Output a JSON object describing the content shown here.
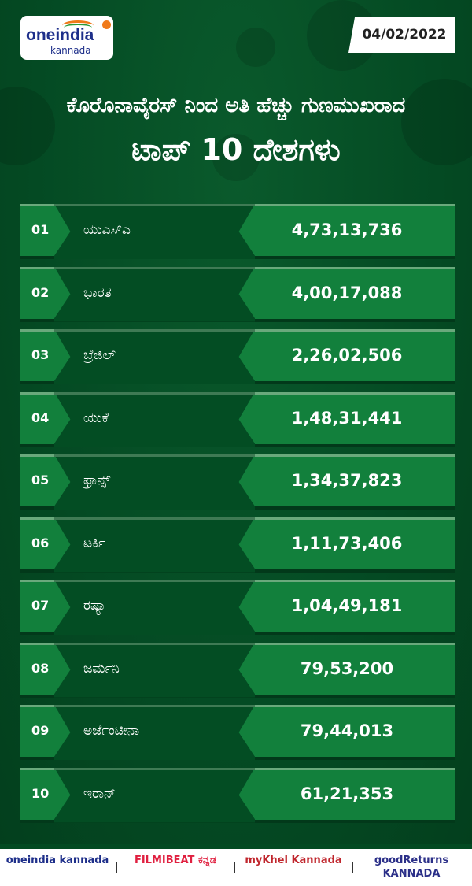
{
  "header": {
    "logo_text": "oneindia",
    "logo_sub": "kannada",
    "date": "04/02/2022"
  },
  "title": {
    "line1": "ಕೊರೊನಾವೈರಸ್ ನಿಂದ ಅತಿ ಹೆಚ್ಚು ಗುಣಮುಖರಾದ",
    "line2": "ಟಾಪ್ 10 ದೇಶಗಳು"
  },
  "colors": {
    "background": "#034a22",
    "row_light": "#12803c",
    "row_dark": "#034d23"
  },
  "rows": [
    {
      "rank": "01",
      "country": "ಯುಎಸ್ಎ",
      "recovered": "4,73,13,736"
    },
    {
      "rank": "02",
      "country": "ಭಾರತ",
      "recovered": "4,00,17,088"
    },
    {
      "rank": "03",
      "country": "ಬ್ರೆಜಿಲ್",
      "recovered": "2,26,02,506"
    },
    {
      "rank": "04",
      "country": "ಯುಕೆ",
      "recovered": "1,48,31,441"
    },
    {
      "rank": "05",
      "country": "ಫ್ರಾನ್ಸ್",
      "recovered": "1,34,37,823"
    },
    {
      "rank": "06",
      "country": "ಟರ್ಕಿ",
      "recovered": "1,11,73,406"
    },
    {
      "rank": "07",
      "country": "ರಷ್ಯಾ",
      "recovered": "1,04,49,181"
    },
    {
      "rank": "08",
      "country": "ಜರ್ಮನಿ",
      "recovered": "79,53,200"
    },
    {
      "rank": "09",
      "country": "ಅರ್ಜೆಂಟೀನಾ",
      "recovered": "79,44,013"
    },
    {
      "rank": "10",
      "country": "ಇರಾನ್",
      "recovered": "61,21,353"
    }
  ],
  "footer": {
    "brands": [
      "oneindia kannada",
      "FILMIBEAT ಕನ್ನಡ",
      "myKhel Kannada",
      "goodReturns KANNADA"
    ]
  }
}
